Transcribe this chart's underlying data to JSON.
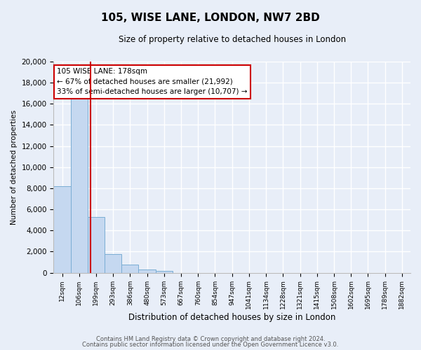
{
  "title": "105, WISE LANE, LONDON, NW7 2BD",
  "subtitle": "Size of property relative to detached houses in London",
  "xlabel": "Distribution of detached houses by size in London",
  "ylabel": "Number of detached properties",
  "bar_labels": [
    "12sqm",
    "106sqm",
    "199sqm",
    "293sqm",
    "386sqm",
    "480sqm",
    "573sqm",
    "667sqm",
    "760sqm",
    "854sqm",
    "947sqm",
    "1041sqm",
    "1134sqm",
    "1228sqm",
    "1321sqm",
    "1415sqm",
    "1508sqm",
    "1602sqm",
    "1695sqm",
    "1789sqm",
    "1882sqm"
  ],
  "bar_values": [
    8200,
    16500,
    5300,
    1750,
    750,
    300,
    200,
    0,
    0,
    0,
    0,
    0,
    0,
    0,
    0,
    0,
    0,
    0,
    0,
    0,
    0
  ],
  "bar_color": "#c5d8f0",
  "bar_edge_color": "#7aadd4",
  "property_line_x": 1.67,
  "property_line_color": "#cc0000",
  "ylim": [
    0,
    20000
  ],
  "yticks": [
    0,
    2000,
    4000,
    6000,
    8000,
    10000,
    12000,
    14000,
    16000,
    18000,
    20000
  ],
  "annotation_title": "105 WISE LANE: 178sqm",
  "annotation_line1": "← 67% of detached houses are smaller (21,992)",
  "annotation_line2": "33% of semi-detached houses are larger (10,707) →",
  "annotation_box_color": "#ffffff",
  "annotation_box_edge": "#cc0000",
  "footer1": "Contains HM Land Registry data © Crown copyright and database right 2024.",
  "footer2": "Contains public sector information licensed under the Open Government Licence v3.0.",
  "bg_color": "#e8eef8",
  "plot_bg_color": "#e8eef8",
  "grid_color": "#ffffff"
}
